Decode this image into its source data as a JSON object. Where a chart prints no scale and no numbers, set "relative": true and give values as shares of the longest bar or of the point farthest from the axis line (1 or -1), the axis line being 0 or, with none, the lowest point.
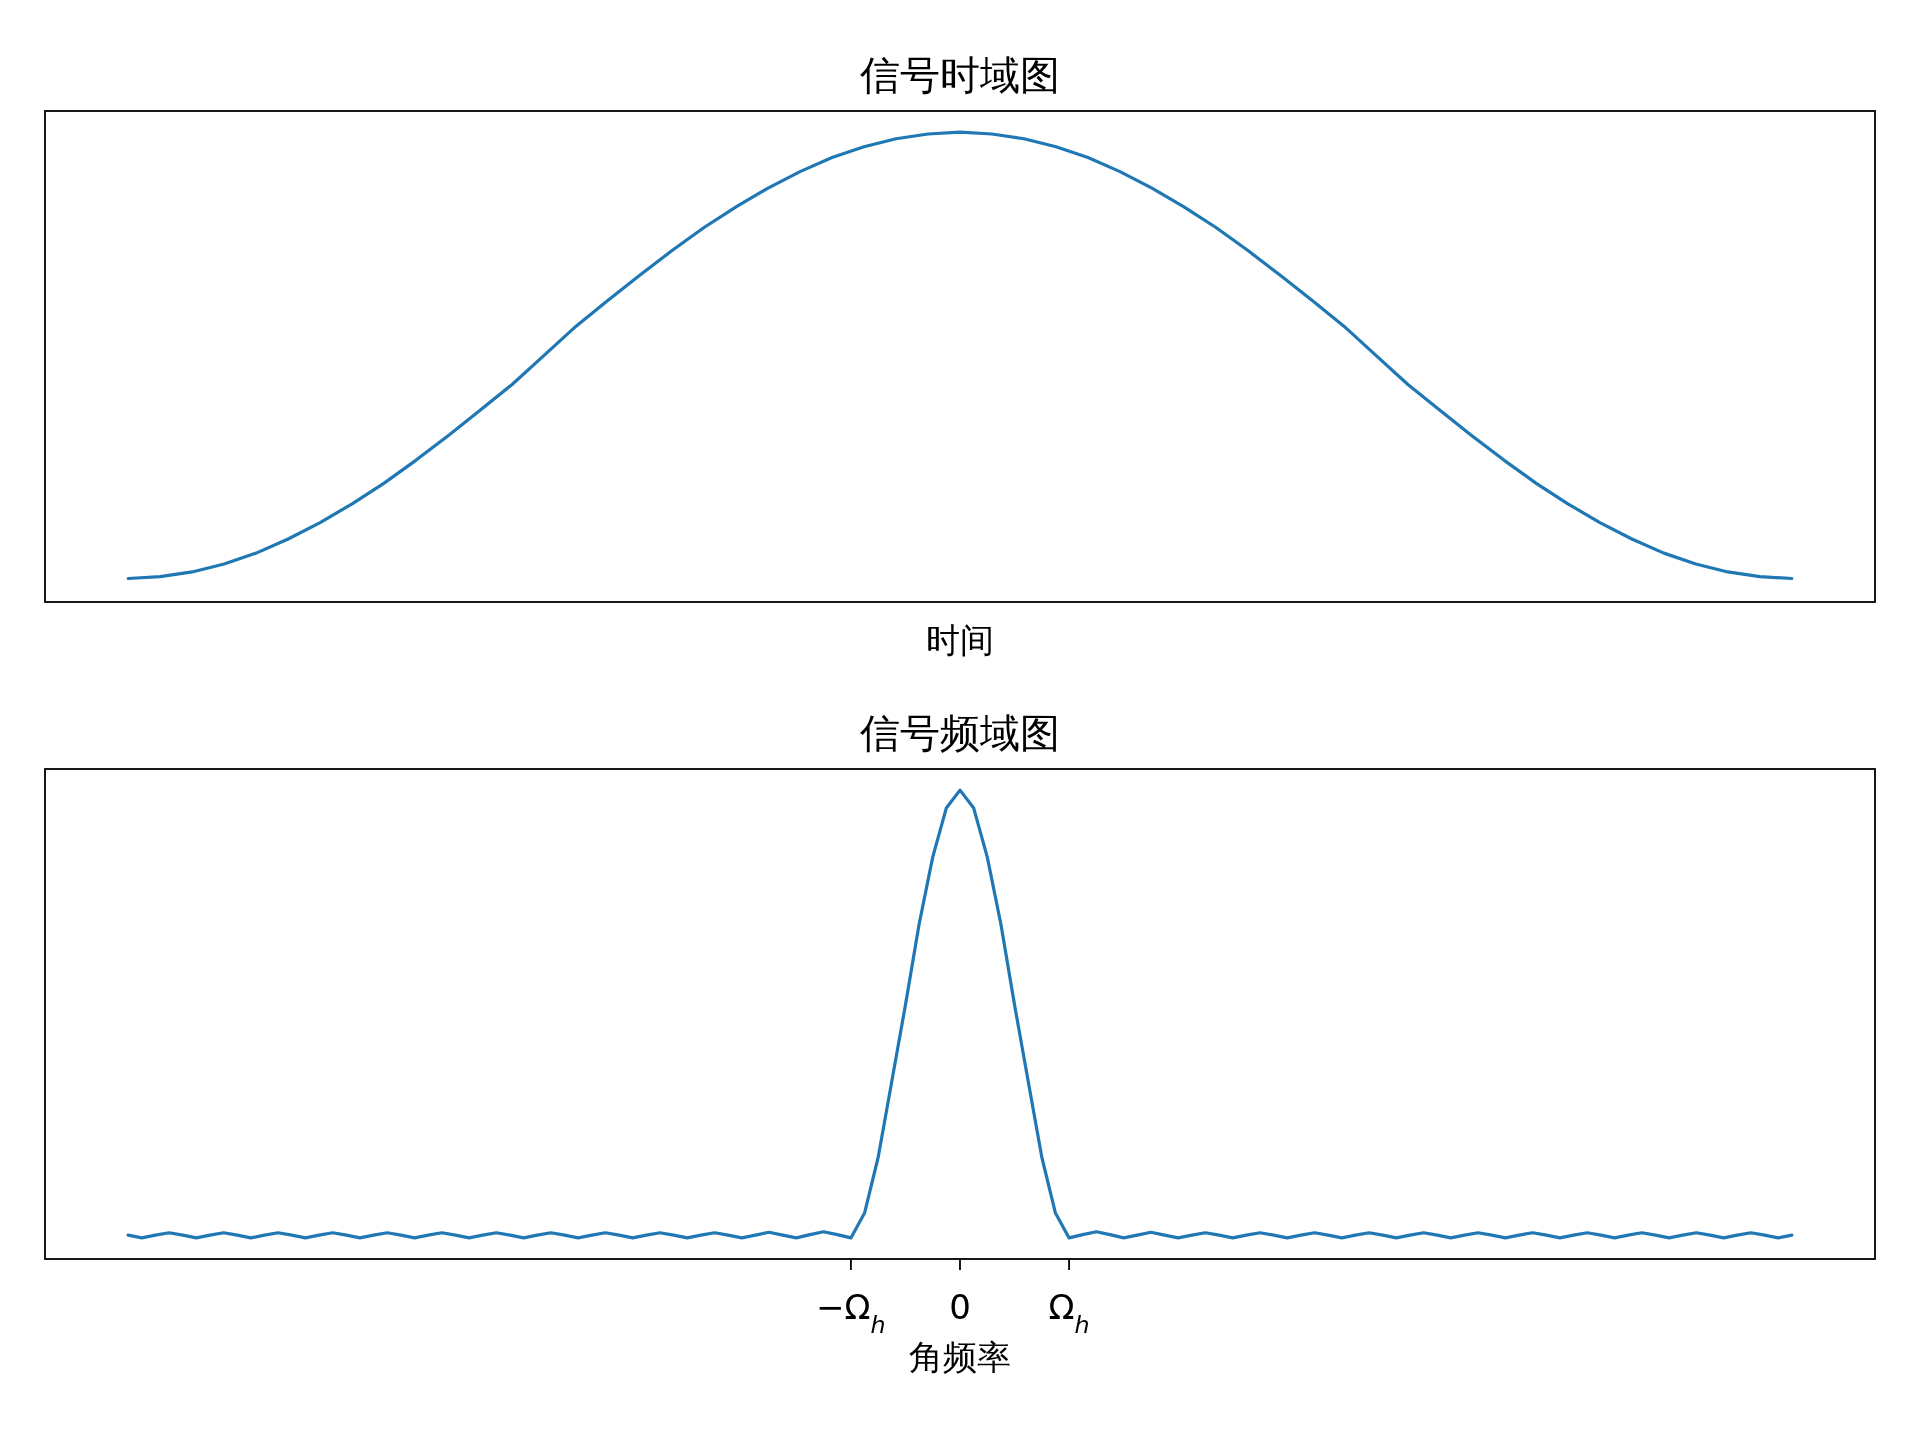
{
  "chart_data": [
    {
      "type": "line",
      "title": "信号时域图",
      "xlabel": "时间",
      "relative": true,
      "color": "#1f77b4",
      "categories": [
        null,
        null,
        null,
        null,
        null,
        null,
        null,
        null,
        null,
        null,
        null,
        null,
        null,
        null,
        null,
        null,
        null,
        null,
        null,
        null,
        null,
        null,
        null,
        null,
        null,
        null,
        null,
        null,
        null,
        null,
        null,
        null,
        null,
        null,
        null,
        null,
        null,
        null,
        null,
        null,
        null,
        null,
        null,
        null,
        null,
        null,
        null,
        null,
        null,
        null,
        null,
        null,
        null
      ],
      "values": [
        0.05,
        0.054,
        0.064,
        0.081,
        0.104,
        0.134,
        0.169,
        0.209,
        0.253,
        0.302,
        0.354,
        0.408,
        0.463,
        0.525,
        0.587,
        0.642,
        0.696,
        0.748,
        0.797,
        0.841,
        0.881,
        0.916,
        0.946,
        0.969,
        0.986,
        0.996,
        1,
        0.996,
        0.986,
        0.969,
        0.946,
        0.916,
        0.881,
        0.841,
        0.797,
        0.748,
        0.696,
        0.642,
        0.587,
        0.525,
        0.463,
        0.408,
        0.354,
        0.302,
        0.253,
        0.209,
        0.169,
        0.134,
        0.104,
        0.081,
        0.064,
        0.054,
        0.05
      ]
    },
    {
      "type": "line",
      "title": "信号频域图",
      "xlabel": "角频率",
      "relative": true,
      "color": "#1f77b4",
      "categories": [
        null,
        null,
        null,
        null,
        null,
        null,
        null,
        null,
        null,
        null,
        null,
        null,
        null,
        null,
        null,
        null,
        null,
        null,
        null,
        null,
        null,
        null,
        null,
        null,
        null,
        null,
        null,
        null,
        null,
        null,
        null,
        null,
        null,
        null,
        null,
        null,
        null,
        null,
        null,
        null,
        null,
        null,
        null,
        null,
        null,
        null,
        null,
        null,
        null,
        null,
        null,
        null,
        null,
        "−Ω$_{h}$",
        null,
        null,
        null,
        null,
        null,
        null,
        null,
        "0",
        null,
        null,
        null,
        null,
        null,
        null,
        null,
        "Ω$_{h}$",
        null,
        null,
        null,
        null,
        null,
        null,
        null,
        null,
        null,
        null,
        null,
        null,
        null,
        null,
        null,
        null,
        null,
        null,
        null,
        null,
        null,
        null,
        null,
        null,
        null,
        null,
        null,
        null,
        null,
        null,
        null,
        null,
        null,
        null,
        null,
        null,
        null,
        null,
        null,
        null,
        null,
        null,
        null,
        null,
        null,
        null,
        null,
        null,
        null,
        null,
        null,
        null,
        null
      ],
      "values": [
        0.051,
        0.045,
        0.051,
        0.056,
        0.051,
        0.045,
        0.051,
        0.056,
        0.051,
        0.045,
        0.051,
        0.056,
        0.051,
        0.045,
        0.051,
        0.056,
        0.051,
        0.045,
        0.051,
        0.056,
        0.051,
        0.045,
        0.051,
        0.056,
        0.051,
        0.045,
        0.051,
        0.056,
        0.051,
        0.045,
        0.051,
        0.056,
        0.051,
        0.045,
        0.051,
        0.056,
        0.051,
        0.045,
        0.051,
        0.056,
        0.051,
        0.045,
        0.051,
        0.056,
        0.051,
        0.045,
        0.051,
        0.057,
        0.051,
        0.045,
        0.052,
        0.058,
        0.052,
        0.045,
        0.098,
        0.217,
        0.379,
        0.542,
        0.714,
        0.857,
        0.962,
        1,
        0.962,
        0.857,
        0.714,
        0.542,
        0.379,
        0.217,
        0.098,
        0.045,
        0.052,
        0.058,
        0.052,
        0.045,
        0.051,
        0.057,
        0.051,
        0.045,
        0.051,
        0.056,
        0.051,
        0.045,
        0.051,
        0.056,
        0.051,
        0.045,
        0.051,
        0.056,
        0.051,
        0.045,
        0.051,
        0.056,
        0.051,
        0.045,
        0.051,
        0.056,
        0.051,
        0.045,
        0.051,
        0.056,
        0.051,
        0.045,
        0.051,
        0.056,
        0.051,
        0.045,
        0.051,
        0.056,
        0.051,
        0.045,
        0.051,
        0.056,
        0.051,
        0.045,
        0.051,
        0.056,
        0.051,
        0.045,
        0.051,
        0.056,
        0.051,
        0.045,
        0.051
      ]
    }
  ]
}
